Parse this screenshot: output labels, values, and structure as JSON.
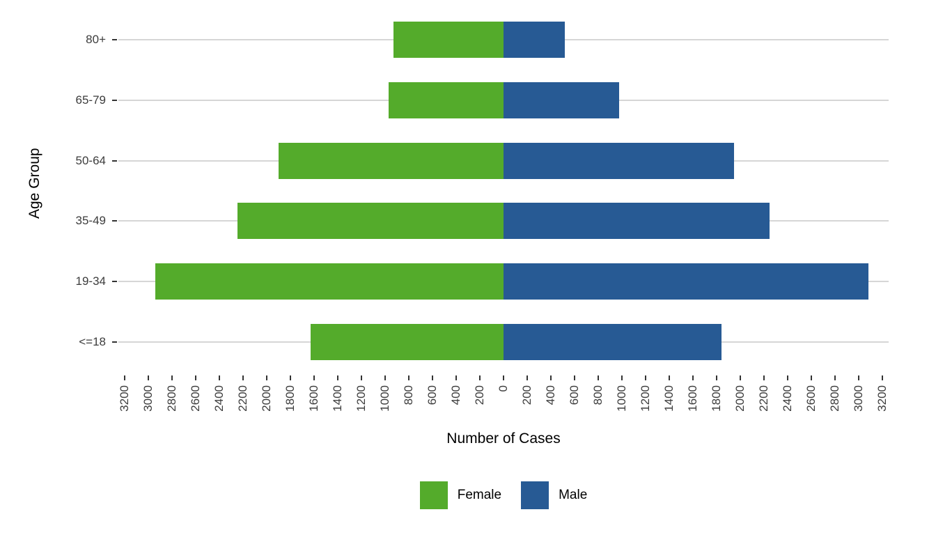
{
  "chart_data": {
    "type": "bar",
    "variant": "diverging-horizontal-population-pyramid",
    "title": "",
    "xlabel": "Number of Cases",
    "ylabel": "Age Group",
    "categories_top_to_bottom": [
      "80+",
      "65-79",
      "50-64",
      "35-49",
      "19-34",
      "<=18"
    ],
    "series": [
      {
        "name": "Female",
        "side": "left",
        "color": "#54AB2B",
        "values": [
          930,
          970,
          1900,
          2245,
          2940,
          1630
        ]
      },
      {
        "name": "Male",
        "side": "right",
        "color": "#275A94",
        "values": [
          515,
          975,
          1945,
          2245,
          3080,
          1840
        ]
      }
    ],
    "x_axis": {
      "tick_step": 200,
      "tick_max": 3200,
      "tick_labels_absolute_value": true,
      "tick_label_rotation_deg": 90,
      "xlim": [
        -3250,
        3250
      ]
    },
    "legend_position": "bottom-center",
    "grid": "horizontal-major-only",
    "colors": {
      "gridline": "#d6d6d6",
      "tick_mark": "#333333",
      "tick_label": "#3c3c3c",
      "axis_title": "#000000",
      "background": "#ffffff"
    }
  }
}
